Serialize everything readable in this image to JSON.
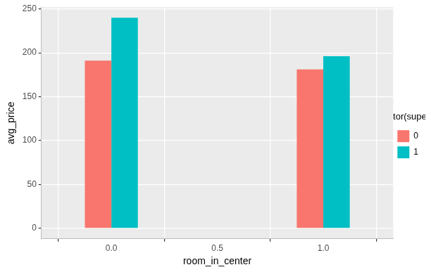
{
  "chart_data": {
    "type": "bar",
    "x_label": "room_in_center",
    "y_label": "avg_price",
    "x": [
      0,
      1
    ],
    "series": [
      {
        "name": "0",
        "color": "#F8766D",
        "values": [
          191,
          181
        ]
      },
      {
        "name": "1",
        "color": "#00BFC4",
        "values": [
          240,
          196
        ]
      }
    ],
    "xlim": [
      -0.33,
      1.33
    ],
    "xticks": [
      {
        "value": 0,
        "label": "0.0"
      },
      {
        "value": 0.5,
        "label": "0.5"
      },
      {
        "value": 1,
        "label": "1.0"
      }
    ],
    "ylim": [
      -12,
      252
    ],
    "yticks": [
      0,
      50,
      100,
      150,
      200,
      250
    ],
    "grid": true,
    "legend": "right",
    "legend_title": "as.factor(superhost)"
  }
}
